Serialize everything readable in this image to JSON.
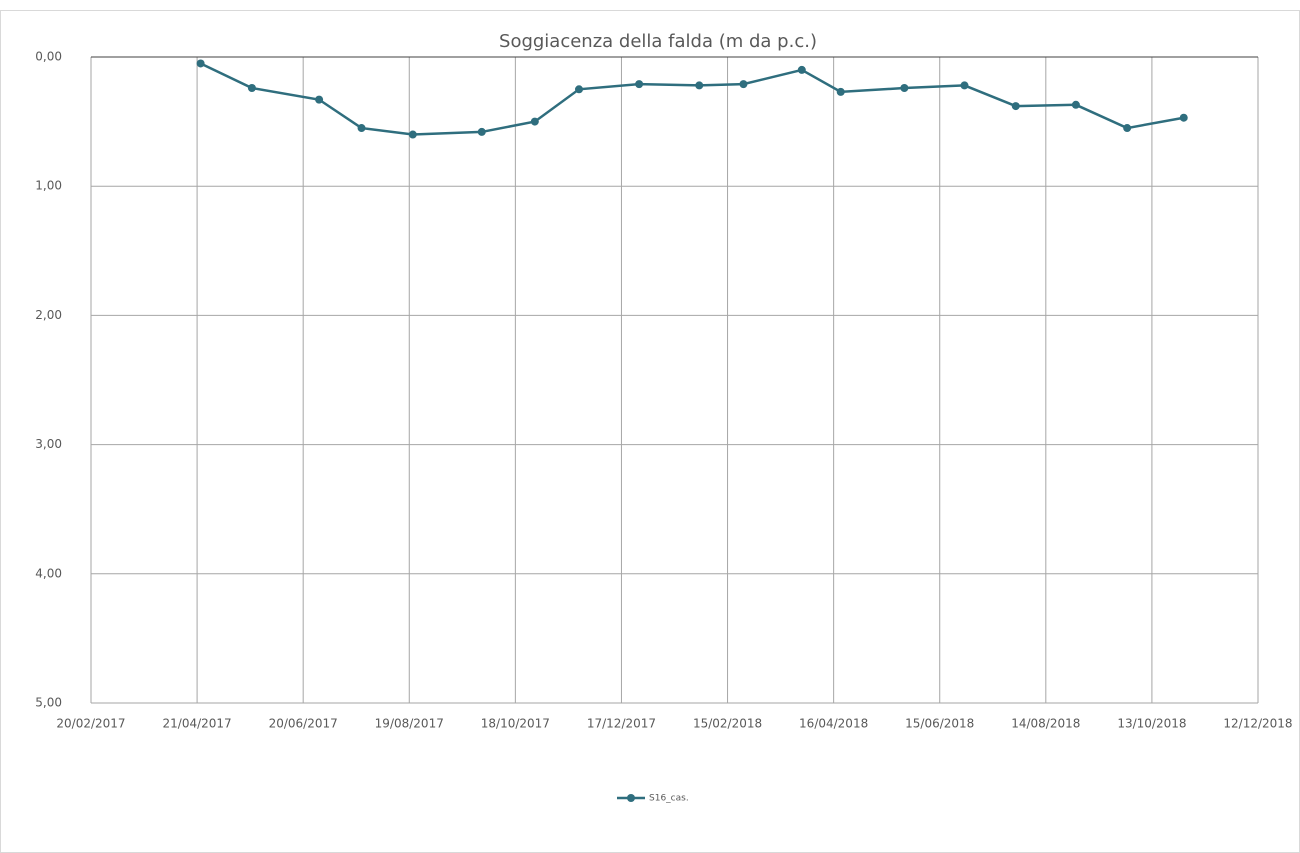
{
  "chart_data": {
    "type": "line",
    "title": "Soggiacenza della falda (m da p.c.)",
    "x": [
      "2017-04-23",
      "2017-05-22",
      "2017-06-29",
      "2017-07-23",
      "2017-08-21",
      "2017-09-29",
      "2017-10-29",
      "2017-11-23",
      "2017-12-27",
      "2018-01-30",
      "2018-02-24",
      "2018-03-29",
      "2018-04-20",
      "2018-05-26",
      "2018-06-29",
      "2018-07-28",
      "2018-08-31",
      "2018-09-29",
      "2018-10-31"
    ],
    "series": [
      {
        "name": "S16_cas.",
        "color": "#2f6e7e",
        "values": [
          0.05,
          0.24,
          0.33,
          0.55,
          0.6,
          0.58,
          0.5,
          0.25,
          0.21,
          0.22,
          0.21,
          0.1,
          0.27,
          0.24,
          0.22,
          0.38,
          0.37,
          0.55,
          0.47
        ]
      }
    ],
    "xlim": [
      "2017-02-20",
      "2018-12-12"
    ],
    "xticks": [
      {
        "value": "2017-02-20",
        "label": "20/02/2017"
      },
      {
        "value": "2017-04-21",
        "label": "21/04/2017"
      },
      {
        "value": "2017-06-20",
        "label": "20/06/2017"
      },
      {
        "value": "2017-08-19",
        "label": "19/08/2017"
      },
      {
        "value": "2017-10-18",
        "label": "18/10/2017"
      },
      {
        "value": "2017-12-17",
        "label": "17/12/2017"
      },
      {
        "value": "2018-02-15",
        "label": "15/02/2018"
      },
      {
        "value": "2018-04-16",
        "label": "16/04/2018"
      },
      {
        "value": "2018-06-15",
        "label": "15/06/2018"
      },
      {
        "value": "2018-08-14",
        "label": "14/08/2018"
      },
      {
        "value": "2018-10-13",
        "label": "13/10/2018"
      },
      {
        "value": "2018-12-12",
        "label": "12/12/2018"
      }
    ],
    "ylim": [
      0,
      5
    ],
    "y_inverted": true,
    "yticks": [
      {
        "value": 0,
        "label": "0,00"
      },
      {
        "value": 1,
        "label": "1,00"
      },
      {
        "value": 2,
        "label": "2,00"
      },
      {
        "value": 3,
        "label": "3,00"
      },
      {
        "value": 4,
        "label": "4,00"
      },
      {
        "value": 5,
        "label": "5,00"
      }
    ],
    "grid": true,
    "legend": "bottom"
  }
}
